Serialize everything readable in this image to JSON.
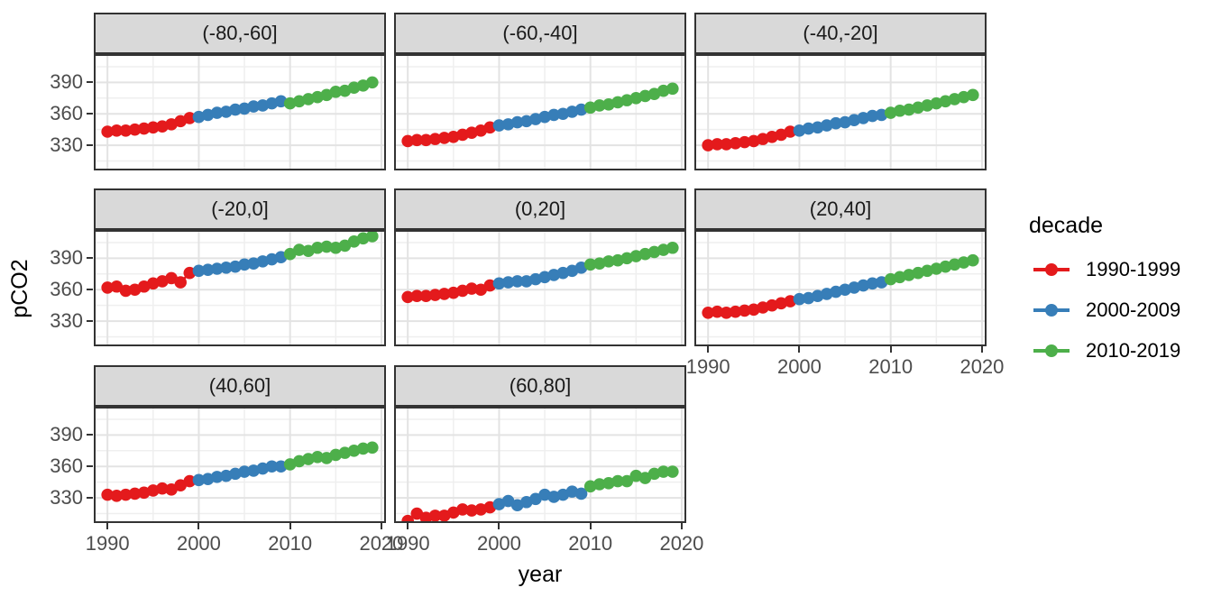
{
  "chart_data": {
    "type": "scatter",
    "title": "",
    "xlabel": "year",
    "ylabel": "pCO2",
    "x_range": [
      1988.5,
      2020.5
    ],
    "y_range": [
      306,
      417
    ],
    "x_ticks": [
      1990,
      2000,
      2010,
      2020
    ],
    "x_minor_ticks": [
      1995,
      2005,
      2015
    ],
    "y_ticks": [
      390,
      360,
      330
    ],
    "y_minor_ticks": [
      315,
      345,
      375,
      405
    ],
    "grid": true,
    "years": [
      1990,
      1991,
      1992,
      1993,
      1994,
      1995,
      1996,
      1997,
      1998,
      1999,
      2000,
      2001,
      2002,
      2003,
      2004,
      2005,
      2006,
      2007,
      2008,
      2009,
      2010,
      2011,
      2012,
      2013,
      2014,
      2015,
      2016,
      2017,
      2018,
      2019
    ],
    "legend": {
      "title": "decade",
      "position": "right",
      "entries": [
        {
          "label": "1990-1999",
          "color": "#E41A1C"
        },
        {
          "label": "2000-2009",
          "color": "#377EB8"
        },
        {
          "label": "2010-2019",
          "color": "#4DAF4A"
        }
      ]
    },
    "facets": [
      {
        "label": "(-80,-60]",
        "series": [
          [
            343,
            344,
            344,
            345,
            346,
            347,
            348,
            350,
            353,
            356
          ],
          [
            357,
            359,
            361,
            362,
            364,
            365,
            367,
            368,
            370,
            372
          ],
          [
            370,
            372,
            374,
            376,
            378,
            381,
            382,
            385,
            387,
            390
          ]
        ]
      },
      {
        "label": "(-60,-40]",
        "series": [
          [
            334,
            335,
            335,
            336,
            337,
            338,
            340,
            342,
            344,
            347
          ],
          [
            349,
            350,
            352,
            353,
            355,
            357,
            359,
            360,
            362,
            364
          ],
          [
            366,
            368,
            369,
            371,
            373,
            375,
            377,
            379,
            382,
            384
          ]
        ]
      },
      {
        "label": "(-40,-20]",
        "series": [
          [
            330,
            331,
            331,
            332,
            333,
            334,
            336,
            338,
            340,
            343
          ],
          [
            344,
            346,
            347,
            349,
            351,
            352,
            354,
            356,
            358,
            359
          ],
          [
            361,
            363,
            364,
            366,
            368,
            370,
            372,
            374,
            376,
            378
          ]
        ]
      },
      {
        "label": "(-20,0]",
        "series": [
          [
            362,
            363,
            359,
            360,
            363,
            366,
            368,
            371,
            367,
            376
          ],
          [
            378,
            379,
            380,
            381,
            382,
            384,
            385,
            387,
            389,
            391
          ],
          [
            394,
            398,
            397,
            400,
            401,
            400,
            402,
            406,
            409,
            411
          ]
        ]
      },
      {
        "label": "(0,20]",
        "series": [
          [
            353,
            354,
            354,
            355,
            356,
            357,
            359,
            361,
            360,
            364
          ],
          [
            366,
            367,
            368,
            368,
            370,
            372,
            374,
            376,
            378,
            381
          ],
          [
            384,
            385,
            387,
            388,
            390,
            392,
            394,
            396,
            398,
            400
          ]
        ]
      },
      {
        "label": "(20,40]",
        "series": [
          [
            338,
            339,
            338,
            339,
            340,
            341,
            343,
            345,
            347,
            349
          ],
          [
            351,
            352,
            354,
            356,
            358,
            360,
            362,
            364,
            366,
            367
          ],
          [
            370,
            372,
            374,
            376,
            378,
            380,
            382,
            384,
            386,
            388
          ]
        ]
      },
      {
        "label": "(40,60]",
        "series": [
          [
            333,
            332,
            333,
            334,
            335,
            337,
            339,
            338,
            342,
            346
          ],
          [
            347,
            348,
            350,
            351,
            353,
            355,
            356,
            358,
            360,
            360
          ],
          [
            362,
            365,
            367,
            369,
            368,
            371,
            373,
            375,
            377,
            378
          ]
        ]
      },
      {
        "label": "(60,80]",
        "series": [
          [
            308,
            315,
            311,
            313,
            313,
            316,
            319,
            318,
            319,
            321
          ],
          [
            324,
            327,
            323,
            326,
            329,
            333,
            331,
            333,
            336,
            334
          ],
          [
            341,
            343,
            344,
            346,
            346,
            351,
            349,
            353,
            355,
            355
          ]
        ]
      }
    ],
    "style": {
      "strip_bg": "#D9D9D9",
      "panel_border": "#333333",
      "grid_major": "#E3E3E3",
      "grid_minor": "#EFEFEF",
      "tick_label_color": "#4D4D4D"
    }
  }
}
